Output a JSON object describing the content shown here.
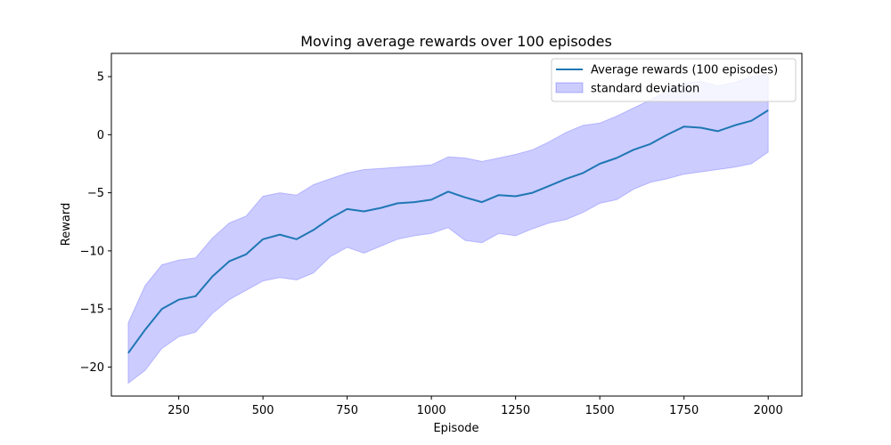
{
  "chart_data": {
    "type": "line",
    "title": "Moving average rewards over 100 episodes",
    "xlabel": "Episode",
    "ylabel": "Reward",
    "xlim": [
      50,
      2100
    ],
    "ylim": [
      -22.5,
      7
    ],
    "xticks": [
      250,
      500,
      750,
      1000,
      1250,
      1500,
      1750,
      2000
    ],
    "yticks": [
      -20,
      -15,
      -10,
      -5,
      0,
      5
    ],
    "grid": false,
    "legend_position": "top-right",
    "colors": {
      "line": "#1f77b4",
      "band_fill": "#0000ff",
      "band_fill_opacity": 0.2,
      "band_edge": "#0000ff"
    },
    "series": [
      {
        "name": "Average rewards (100 episodes)",
        "kind": "line",
        "x": [
          100,
          150,
          200,
          250,
          300,
          350,
          400,
          450,
          500,
          550,
          600,
          650,
          700,
          750,
          800,
          850,
          900,
          950,
          1000,
          1050,
          1100,
          1150,
          1200,
          1250,
          1300,
          1350,
          1400,
          1450,
          1500,
          1550,
          1600,
          1650,
          1700,
          1750,
          1800,
          1850,
          1900,
          1950,
          2000
        ],
        "values": [
          -18.8,
          -16.8,
          -15.0,
          -14.2,
          -13.9,
          -12.2,
          -10.9,
          -10.3,
          -9.0,
          -8.6,
          -9.0,
          -8.2,
          -7.2,
          -6.4,
          -6.6,
          -6.3,
          -5.9,
          -5.8,
          -5.6,
          -4.9,
          -5.4,
          -5.8,
          -5.2,
          -5.3,
          -5.0,
          -4.4,
          -3.8,
          -3.3,
          -2.5,
          -2.0,
          -1.3,
          -0.8,
          0.0,
          0.7,
          0.6,
          0.3,
          0.8,
          1.2,
          2.1
        ]
      },
      {
        "name": "standard deviation",
        "kind": "band",
        "x": [
          100,
          150,
          200,
          250,
          300,
          350,
          400,
          450,
          500,
          550,
          600,
          650,
          700,
          750,
          800,
          850,
          900,
          950,
          1000,
          1050,
          1100,
          1150,
          1200,
          1250,
          1300,
          1350,
          1400,
          1450,
          1500,
          1550,
          1600,
          1650,
          1700,
          1750,
          1800,
          1850,
          1900,
          1950,
          2000
        ],
        "upper": [
          -16.2,
          -13.0,
          -11.2,
          -10.8,
          -10.6,
          -8.9,
          -7.6,
          -7.0,
          -5.3,
          -5.0,
          -5.2,
          -4.3,
          -3.8,
          -3.3,
          -3.0,
          -2.9,
          -2.8,
          -2.7,
          -2.6,
          -1.9,
          -2.0,
          -2.3,
          -2.0,
          -1.7,
          -1.3,
          -0.6,
          0.2,
          0.8,
          1.0,
          1.6,
          2.3,
          3.0,
          3.8,
          4.4,
          4.6,
          4.2,
          4.5,
          5.0,
          5.2
        ],
        "lower": [
          -21.4,
          -20.3,
          -18.4,
          -17.4,
          -17.0,
          -15.4,
          -14.2,
          -13.4,
          -12.6,
          -12.3,
          -12.5,
          -11.9,
          -10.5,
          -9.7,
          -10.2,
          -9.6,
          -9.0,
          -8.7,
          -8.5,
          -8.0,
          -9.1,
          -9.3,
          -8.5,
          -8.7,
          -8.1,
          -7.6,
          -7.3,
          -6.7,
          -5.9,
          -5.6,
          -4.7,
          -4.1,
          -3.8,
          -3.4,
          -3.2,
          -3.0,
          -2.8,
          -2.5,
          -1.5
        ]
      }
    ]
  }
}
